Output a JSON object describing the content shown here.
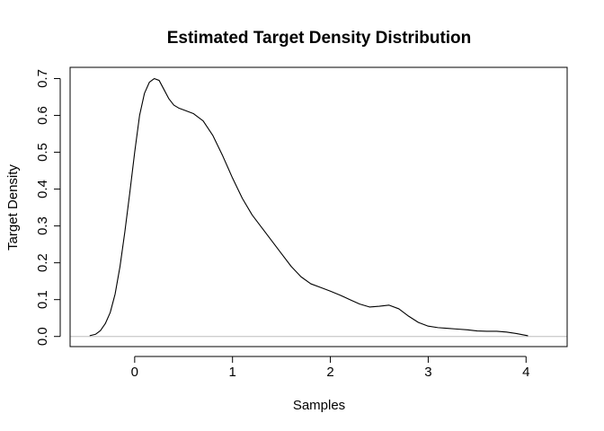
{
  "chart_data": {
    "type": "line",
    "title": "Estimated Target Density Distribution",
    "xlabel": "Samples",
    "ylabel": "Target Density",
    "xlim": [
      -0.66,
      4.42
    ],
    "ylim": [
      -0.0275,
      0.7305
    ],
    "x_ticks": [
      0,
      1,
      2,
      3,
      4
    ],
    "y_ticks": [
      0.0,
      0.1,
      0.2,
      0.3,
      0.4,
      0.5,
      0.6,
      0.7
    ],
    "x_tick_labels": [
      "0",
      "1",
      "2",
      "3",
      "4"
    ],
    "y_tick_labels": [
      "0.0",
      "0.1",
      "0.2",
      "0.3",
      "0.4",
      "0.5",
      "0.6",
      "0.7"
    ],
    "grid": false,
    "baseline": {
      "y": 0,
      "color": "#bebebe"
    },
    "line_color": "#000000",
    "series": [
      {
        "x": [
          -0.46,
          -0.4,
          -0.35,
          -0.3,
          -0.25,
          -0.2,
          -0.15,
          -0.1,
          -0.05,
          0.0,
          0.05,
          0.1,
          0.15,
          0.2,
          0.25,
          0.3,
          0.35,
          0.4,
          0.45,
          0.5,
          0.6,
          0.7,
          0.8,
          0.9,
          1.0,
          1.1,
          1.2,
          1.3,
          1.4,
          1.5,
          1.6,
          1.7,
          1.8,
          1.9,
          2.0,
          2.1,
          2.2,
          2.3,
          2.4,
          2.5,
          2.6,
          2.7,
          2.8,
          2.9,
          3.0,
          3.1,
          3.2,
          3.3,
          3.4,
          3.5,
          3.6,
          3.7,
          3.8,
          3.9,
          4.02
        ],
        "y": [
          0.002,
          0.006,
          0.016,
          0.035,
          0.065,
          0.115,
          0.19,
          0.285,
          0.39,
          0.5,
          0.6,
          0.66,
          0.69,
          0.7,
          0.695,
          0.67,
          0.645,
          0.628,
          0.62,
          0.615,
          0.605,
          0.585,
          0.545,
          0.49,
          0.43,
          0.375,
          0.33,
          0.295,
          0.26,
          0.225,
          0.19,
          0.162,
          0.143,
          0.133,
          0.123,
          0.112,
          0.1,
          0.088,
          0.08,
          0.082,
          0.085,
          0.075,
          0.055,
          0.038,
          0.028,
          0.024,
          0.022,
          0.02,
          0.018,
          0.015,
          0.014,
          0.014,
          0.012,
          0.008,
          0.002
        ]
      }
    ]
  }
}
